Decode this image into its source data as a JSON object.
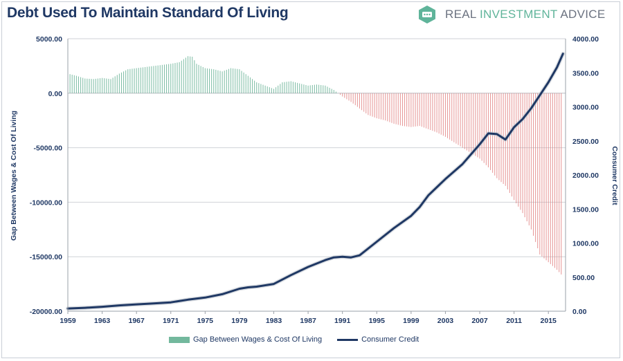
{
  "title": "Debt Used To Maintain Standard Of Living",
  "brand": {
    "name_part1": "REAL ",
    "name_accent": "INVESTMENT",
    "name_part2": " ADVICE"
  },
  "colors": {
    "bar_positive": "#5aab8c",
    "bar_negative": "#e07a7a",
    "line": "#1f3864",
    "title": "#1f3864"
  },
  "chart_data": {
    "type": "bar+line",
    "title": "Debt Used To Maintain Standard Of Living",
    "left_axis": {
      "label": "Gap Between Wages & Cost Of Living",
      "range": [
        -20000,
        5000
      ],
      "ticks": [
        "5000.00",
        "0.00",
        "-5000.00",
        "-10000.00",
        "-15000.00",
        "-20000.00"
      ],
      "tick_values": [
        5000,
        0,
        -5000,
        -10000,
        -15000,
        -20000
      ]
    },
    "right_axis": {
      "label": "Consumer Credit",
      "range": [
        0,
        4000
      ],
      "ticks": [
        "4000.00",
        "3500.00",
        "3000.00",
        "2500.00",
        "2000.00",
        "1500.00",
        "1000.00",
        "500.00",
        "0.00"
      ],
      "tick_values": [
        4000,
        3500,
        3000,
        2500,
        2000,
        1500,
        1000,
        500,
        0
      ]
    },
    "x_axis": {
      "range": [
        1959,
        2017
      ],
      "ticks": [
        "1959",
        "1963",
        "1967",
        "1971",
        "1975",
        "1979",
        "1983",
        "1987",
        "1991",
        "1995",
        "1999",
        "2003",
        "2007",
        "2011",
        "2015"
      ],
      "tick_values": [
        1959,
        1963,
        1967,
        1971,
        1975,
        1979,
        1983,
        1987,
        1991,
        1995,
        1999,
        2003,
        2007,
        2011,
        2015
      ]
    },
    "grid": true,
    "legend_position": "bottom",
    "series": [
      {
        "name": "Gap Between Wages & Cost Of Living",
        "type": "bar",
        "axis": "left",
        "points": [
          [
            1959,
            1800
          ],
          [
            1960,
            1600
          ],
          [
            1961,
            1350
          ],
          [
            1962,
            1300
          ],
          [
            1963,
            1400
          ],
          [
            1964,
            1300
          ],
          [
            1965,
            1800
          ],
          [
            1966,
            2200
          ],
          [
            1967,
            2300
          ],
          [
            1968,
            2400
          ],
          [
            1969,
            2500
          ],
          [
            1970,
            2600
          ],
          [
            1971,
            2700
          ],
          [
            1972,
            2850
          ],
          [
            1973,
            3400
          ],
          [
            1973.5,
            3350
          ],
          [
            1974,
            2700
          ],
          [
            1975,
            2300
          ],
          [
            1976,
            2200
          ],
          [
            1977,
            2000
          ],
          [
            1978,
            2300
          ],
          [
            1979,
            2200
          ],
          [
            1980,
            1600
          ],
          [
            1981,
            1000
          ],
          [
            1982,
            700
          ],
          [
            1983,
            400
          ],
          [
            1984,
            1000
          ],
          [
            1985,
            1100
          ],
          [
            1986,
            900
          ],
          [
            1987,
            700
          ],
          [
            1988,
            800
          ],
          [
            1989,
            700
          ],
          [
            1990,
            300
          ],
          [
            1990.5,
            0
          ],
          [
            1991,
            -300
          ],
          [
            1992,
            -800
          ],
          [
            1993,
            -1400
          ],
          [
            1994,
            -2000
          ],
          [
            1995,
            -2300
          ],
          [
            1996,
            -2500
          ],
          [
            1997,
            -2800
          ],
          [
            1998,
            -3000
          ],
          [
            1999,
            -3100
          ],
          [
            2000,
            -3000
          ],
          [
            2001,
            -3300
          ],
          [
            2002,
            -3600
          ],
          [
            2003,
            -4000
          ],
          [
            2004,
            -4500
          ],
          [
            2005,
            -5000
          ],
          [
            2006,
            -5500
          ],
          [
            2007,
            -6000
          ],
          [
            2008,
            -6800
          ],
          [
            2009,
            -7800
          ],
          [
            2010,
            -8500
          ],
          [
            2011,
            -9800
          ],
          [
            2012,
            -11000
          ],
          [
            2013,
            -12500
          ],
          [
            2014,
            -14800
          ],
          [
            2015,
            -15500
          ],
          [
            2016,
            -16200
          ],
          [
            2016.7,
            -16800
          ]
        ]
      },
      {
        "name": "Consumer Credit",
        "type": "line",
        "axis": "right",
        "points": [
          [
            1959,
            40
          ],
          [
            1961,
            50
          ],
          [
            1963,
            65
          ],
          [
            1965,
            85
          ],
          [
            1967,
            100
          ],
          [
            1969,
            115
          ],
          [
            1971,
            130
          ],
          [
            1973,
            170
          ],
          [
            1975,
            200
          ],
          [
            1977,
            250
          ],
          [
            1979,
            330
          ],
          [
            1980,
            350
          ],
          [
            1981,
            360
          ],
          [
            1983,
            400
          ],
          [
            1985,
            530
          ],
          [
            1987,
            650
          ],
          [
            1989,
            750
          ],
          [
            1990,
            790
          ],
          [
            1991,
            800
          ],
          [
            1992,
            790
          ],
          [
            1993,
            820
          ],
          [
            1995,
            1020
          ],
          [
            1997,
            1220
          ],
          [
            1999,
            1400
          ],
          [
            2000,
            1530
          ],
          [
            2001,
            1700
          ],
          [
            2003,
            1940
          ],
          [
            2005,
            2160
          ],
          [
            2007,
            2450
          ],
          [
            2008,
            2610
          ],
          [
            2009,
            2600
          ],
          [
            2010,
            2520
          ],
          [
            2011,
            2700
          ],
          [
            2012,
            2820
          ],
          [
            2013,
            2980
          ],
          [
            2014,
            3170
          ],
          [
            2015,
            3360
          ],
          [
            2016,
            3580
          ],
          [
            2016.7,
            3780
          ]
        ]
      }
    ]
  },
  "legend": {
    "bar_label": "Gap Between Wages & Cost Of Living",
    "line_label": "Consumer Credit"
  }
}
